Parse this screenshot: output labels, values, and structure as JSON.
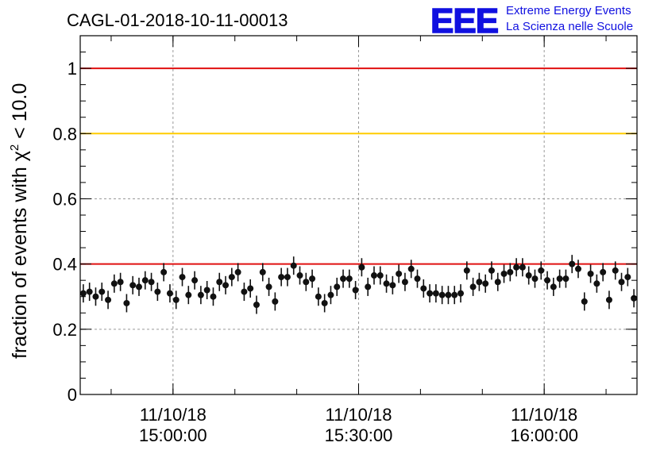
{
  "chart_data": {
    "type": "scatter",
    "title": "CAGL-01-2018-10-11-00013",
    "ylabel_prefix": "fraction of events with ",
    "ylabel_chi": "χ",
    "ylabel_sup": "2",
    "ylabel_suffix": " < 10.0",
    "xlabel": "",
    "ylim": [
      0,
      1.1
    ],
    "xlim": [
      "2018-10-11 14:45:00",
      "2018-10-11 16:15:00"
    ],
    "grid": true,
    "yticks": [
      {
        "value": 0,
        "label": "0"
      },
      {
        "value": 0.2,
        "label": "0.2"
      },
      {
        "value": 0.4,
        "label": "0.4"
      },
      {
        "value": 0.6,
        "label": "0.6"
      },
      {
        "value": 0.8,
        "label": "0.8"
      },
      {
        "value": 1,
        "label": "1"
      }
    ],
    "xticks": [
      {
        "time": "2018-10-11 15:00:00",
        "date": "11/10/18",
        "clock": "15:00:00"
      },
      {
        "time": "2018-10-11 15:30:00",
        "date": "11/10/18",
        "clock": "15:30:00"
      },
      {
        "time": "2018-10-11 16:00:00",
        "date": "11/10/18",
        "clock": "16:00:00"
      }
    ],
    "reference_lines": [
      {
        "y": 1.0,
        "color": "#e01010"
      },
      {
        "y": 0.8,
        "color": "#ffcc00"
      },
      {
        "y": 0.4,
        "color": "#e01010"
      }
    ],
    "series": [
      {
        "color": "#111111",
        "x": [
          "14:45:30",
          "14:46:30",
          "14:47:30",
          "14:48:30",
          "14:49:30",
          "14:50:30",
          "14:51:30",
          "14:52:30",
          "14:53:30",
          "14:54:30",
          "14:55:30",
          "14:56:30",
          "14:57:30",
          "14:58:30",
          "14:59:30",
          "15:00:30",
          "15:01:30",
          "15:02:30",
          "15:03:30",
          "15:04:30",
          "15:05:30",
          "15:06:30",
          "15:07:30",
          "15:08:30",
          "15:09:30",
          "15:10:30",
          "15:11:30",
          "15:12:30",
          "15:13:30",
          "15:14:30",
          "15:15:30",
          "15:16:30",
          "15:17:30",
          "15:18:30",
          "15:19:30",
          "15:20:30",
          "15:21:30",
          "15:22:30",
          "15:23:30",
          "15:24:30",
          "15:25:30",
          "15:26:30",
          "15:27:30",
          "15:28:30",
          "15:29:30",
          "15:30:30",
          "15:31:30",
          "15:32:30",
          "15:33:30",
          "15:34:30",
          "15:35:30",
          "15:36:30",
          "15:37:30",
          "15:38:30",
          "15:39:30",
          "15:40:30",
          "15:41:30",
          "15:42:30",
          "15:43:30",
          "15:44:30",
          "15:45:30",
          "15:46:30",
          "15:47:30",
          "15:48:30",
          "15:49:30",
          "15:50:30",
          "15:51:30",
          "15:52:30",
          "15:53:30",
          "15:54:30",
          "15:55:30",
          "15:56:30",
          "15:57:30",
          "15:58:30",
          "15:59:30",
          "16:00:30",
          "16:01:30",
          "16:02:30",
          "16:03:30",
          "16:04:30",
          "16:05:30",
          "16:06:30",
          "16:07:30",
          "16:08:30",
          "16:09:30",
          "16:10:30",
          "16:11:30",
          "16:12:30",
          "16:13:30",
          "16:14:30"
        ],
        "y": [
          0.31,
          0.315,
          0.3,
          0.315,
          0.29,
          0.34,
          0.345,
          0.28,
          0.335,
          0.33,
          0.35,
          0.345,
          0.315,
          0.375,
          0.31,
          0.29,
          0.36,
          0.305,
          0.35,
          0.305,
          0.32,
          0.3,
          0.345,
          0.335,
          0.36,
          0.375,
          0.315,
          0.325,
          0.275,
          0.375,
          0.33,
          0.285,
          0.36,
          0.36,
          0.395,
          0.365,
          0.345,
          0.355,
          0.3,
          0.28,
          0.305,
          0.33,
          0.355,
          0.355,
          0.32,
          0.39,
          0.33,
          0.365,
          0.365,
          0.34,
          0.335,
          0.37,
          0.345,
          0.385,
          0.355,
          0.325,
          0.31,
          0.31,
          0.305,
          0.305,
          0.305,
          0.31,
          0.38,
          0.33,
          0.345,
          0.34,
          0.38,
          0.345,
          0.37,
          0.375,
          0.39,
          0.39,
          0.365,
          0.355,
          0.38,
          0.35,
          0.33,
          0.355,
          0.355,
          0.4,
          0.385,
          0.285,
          0.37,
          0.34,
          0.375,
          0.29,
          0.38,
          0.345,
          0.36,
          0.295
        ],
        "err": 0.028
      }
    ]
  },
  "logo": {
    "mark": "EEE",
    "line1": "Extreme Energy Events",
    "line2": "La Scienza nelle Scuole",
    "color": "#1010e0"
  }
}
